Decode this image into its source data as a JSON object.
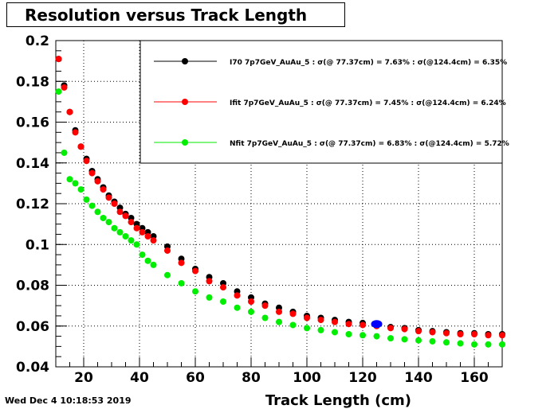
{
  "title": "Resolution versus Track Length",
  "timestamp": "Wed Dec  4 10:18:53 2019",
  "chart_data": {
    "type": "scatter",
    "title": "Resolution versus Track Length",
    "xlabel": "Track Length (cm)",
    "ylabel": "",
    "xlim": [
      10,
      170
    ],
    "ylim": [
      0.04,
      0.2
    ],
    "x_ticks": [
      "20",
      "40",
      "60",
      "80",
      "100",
      "120",
      "140",
      "160"
    ],
    "y_ticks": [
      "0.04",
      "0.06",
      "0.08",
      "0.1",
      "0.12",
      "0.14",
      "0.16",
      "0.18",
      "0.2"
    ],
    "grid": true,
    "legend_position": "top-right",
    "series": [
      {
        "name": "I70  7p7GeV_AuAu_5 : σ(@ 77.37cm) =  7.63% : σ(@124.4cm) =  6.35%",
        "color": "#000000",
        "x": [
          11,
          13,
          15,
          17,
          19,
          21,
          23,
          25,
          27,
          29,
          31,
          33,
          35,
          37,
          39,
          41,
          43,
          45,
          50,
          55,
          60,
          65,
          70,
          75,
          80,
          85,
          90,
          95,
          100,
          105,
          110,
          115,
          120,
          125,
          130,
          135,
          140,
          145,
          150,
          155,
          160,
          165,
          170
        ],
        "y": [
          0.191,
          0.178,
          0.165,
          0.156,
          0.148,
          0.142,
          0.136,
          0.132,
          0.128,
          0.124,
          0.121,
          0.118,
          0.115,
          0.113,
          0.11,
          0.108,
          0.106,
          0.104,
          0.099,
          0.093,
          0.088,
          0.084,
          0.081,
          0.077,
          0.074,
          0.071,
          0.069,
          0.067,
          0.065,
          0.064,
          0.063,
          0.062,
          0.0615,
          0.061,
          0.0595,
          0.059,
          0.058,
          0.0575,
          0.057,
          0.0565,
          0.0565,
          0.056,
          0.056
        ]
      },
      {
        "name": "Ifit 7p7GeV_AuAu_5 : σ(@ 77.37cm) =  7.45% : σ(@124.4cm) =  6.24%",
        "color": "#ff0000",
        "x": [
          11,
          13,
          15,
          17,
          19,
          21,
          23,
          25,
          27,
          29,
          31,
          33,
          35,
          37,
          39,
          41,
          43,
          45,
          50,
          55,
          60,
          65,
          70,
          75,
          80,
          85,
          90,
          95,
          100,
          105,
          110,
          115,
          120,
          125,
          130,
          135,
          140,
          145,
          150,
          155,
          160,
          165,
          170
        ],
        "y": [
          0.191,
          0.177,
          0.165,
          0.155,
          0.148,
          0.141,
          0.135,
          0.131,
          0.127,
          0.123,
          0.12,
          0.116,
          0.114,
          0.111,
          0.108,
          0.106,
          0.104,
          0.102,
          0.097,
          0.091,
          0.087,
          0.082,
          0.079,
          0.075,
          0.072,
          0.07,
          0.067,
          0.066,
          0.064,
          0.063,
          0.062,
          0.061,
          0.0605,
          0.06,
          0.059,
          0.0585,
          0.0575,
          0.057,
          0.0565,
          0.056,
          0.056,
          0.0555,
          0.0555
        ]
      },
      {
        "name": "Nfit 7p7GeV_AuAu_5 : σ(@ 77.37cm) =  6.83% : σ(@124.4cm) =  5.72%",
        "color": "#00ee00",
        "x": [
          11,
          13,
          15,
          17,
          19,
          21,
          23,
          25,
          27,
          29,
          31,
          33,
          35,
          37,
          39,
          41,
          43,
          45,
          50,
          55,
          60,
          65,
          70,
          75,
          80,
          85,
          90,
          95,
          100,
          105,
          110,
          115,
          120,
          125,
          130,
          135,
          140,
          145,
          150,
          155,
          160,
          165,
          170
        ],
        "y": [
          0.175,
          0.145,
          0.132,
          0.13,
          0.127,
          0.122,
          0.119,
          0.116,
          0.113,
          0.111,
          0.108,
          0.106,
          0.104,
          0.102,
          0.1,
          0.095,
          0.092,
          0.09,
          0.085,
          0.081,
          0.077,
          0.074,
          0.072,
          0.069,
          0.067,
          0.064,
          0.062,
          0.0605,
          0.059,
          0.058,
          0.057,
          0.056,
          0.0555,
          0.055,
          0.054,
          0.0535,
          0.053,
          0.0525,
          0.052,
          0.0515,
          0.051,
          0.051,
          0.051
        ]
      }
    ],
    "highlight_point": {
      "x": 125,
      "y": 0.061,
      "color": "#0000ff"
    }
  }
}
